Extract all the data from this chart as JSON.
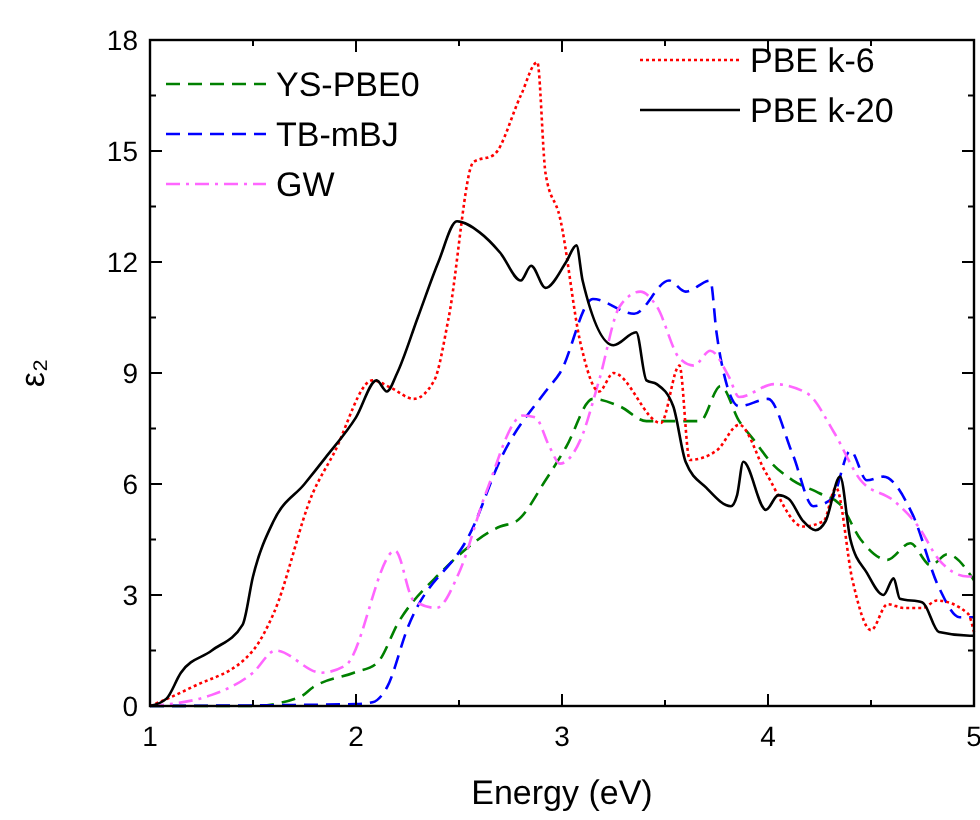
{
  "chart_data": {
    "type": "line",
    "xlabel": "Energy (eV)",
    "ylabel": "ε₂",
    "xlim": [
      1,
      5
    ],
    "ylim": [
      0,
      18
    ],
    "xticks": [
      1,
      {
        "value": 1.5,
        "label": null
      },
      2,
      {
        "value": 2.5,
        "label": null
      },
      3,
      {
        "value": 3.5,
        "label": null
      },
      4,
      {
        "value": 4.5,
        "label": null
      },
      5
    ],
    "yticks": [
      0,
      {
        "value": 1.5,
        "label": null
      },
      3,
      {
        "value": 4.5,
        "label": null
      },
      6,
      {
        "value": 7.5,
        "label": null
      },
      9,
      {
        "value": 10.5,
        "label": null
      },
      12,
      {
        "value": 13.5,
        "label": null
      },
      15,
      {
        "value": 16.5,
        "label": null
      },
      18
    ],
    "grid": false,
    "legend": "top",
    "marker": "none",
    "series": [
      {
        "name": "YS-PBE0",
        "color": "#008000",
        "line_style": "dashed",
        "x": [
          1,
          1.5,
          1.73,
          1.79,
          1.99,
          2.1,
          2.21,
          2.41,
          2.7,
          2.78,
          2.92,
          3.02,
          3.15,
          3.28,
          3.41,
          3.54,
          3.67,
          3.77,
          3.86,
          3.93,
          4.02,
          4.12,
          4.25,
          4.35,
          4.45,
          4.58,
          4.69,
          4.79,
          4.87,
          5
        ],
        "values": [
          0,
          0,
          0.25,
          0.5,
          0.9,
          1.15,
          2.3,
          3.6,
          4.85,
          5.0,
          6.1,
          7.0,
          8.3,
          8.1,
          7.7,
          7.7,
          7.7,
          8.65,
          7.7,
          7.2,
          6.55,
          6.1,
          5.75,
          5.45,
          4.5,
          3.95,
          4.4,
          3.8,
          4.1,
          3.4
        ]
      },
      {
        "name": "TB-mBJ",
        "color": "#0000ff",
        "line_style": "dashed",
        "x": [
          1,
          2.0,
          2.08,
          2.15,
          2.25,
          2.57,
          2.7,
          2.92,
          2.99,
          3.15,
          3.35,
          3.52,
          3.6,
          3.72,
          3.75,
          3.77,
          3.86,
          4.0,
          4.12,
          4.22,
          4.31,
          4.4,
          4.48,
          4.56,
          4.7,
          4.83,
          4.93,
          5
        ],
        "values": [
          0,
          0.05,
          0.1,
          0.5,
          2.1,
          4.85,
          6.65,
          8.5,
          9.0,
          11.0,
          10.6,
          11.5,
          11.2,
          11.5,
          10.1,
          9.4,
          8.1,
          8.3,
          6.8,
          5.4,
          5.6,
          6.9,
          6.1,
          6.2,
          5.2,
          3.2,
          2.4,
          2.4
        ]
      },
      {
        "name": "GW",
        "color": "#ff66ff",
        "line_style": "dashdot",
        "x": [
          1,
          1.3,
          1.5,
          1.61,
          1.83,
          1.95,
          2.19,
          2.28,
          2.39,
          2.5,
          2.63,
          2.81,
          2.87,
          2.94,
          2.99,
          3.09,
          3.18,
          3.28,
          3.38,
          3.46,
          3.57,
          3.64,
          3.72,
          3.81,
          3.86,
          4.03,
          4.19,
          4.32,
          4.45,
          4.61,
          4.73,
          4.83,
          4.97,
          5
        ],
        "values": [
          0,
          0.3,
          0.9,
          1.5,
          0.9,
          1.1,
          4.2,
          2.85,
          2.65,
          3.6,
          5.75,
          7.85,
          7.8,
          7.0,
          6.55,
          7.2,
          8.8,
          10.8,
          11.2,
          10.8,
          9.4,
          9.2,
          9.6,
          8.9,
          8.35,
          8.7,
          8.45,
          7.4,
          6.1,
          5.55,
          4.85,
          3.95,
          3.5,
          3.5
        ]
      },
      {
        "name": "PBE k-6",
        "color": "#ff0000",
        "line_style": "dotted",
        "x": [
          1,
          1.2,
          1.5,
          1.6,
          1.79,
          1.89,
          2.08,
          2.17,
          2.28,
          2.38,
          2.45,
          2.57,
          2.67,
          2.8,
          2.88,
          2.92,
          2.99,
          3.09,
          3.18,
          3.25,
          3.48,
          3.57,
          3.62,
          3.75,
          3.86,
          3.99,
          4.17,
          4.27,
          4.33,
          4.41,
          4.5,
          4.58,
          4.66,
          4.75,
          4.82,
          4.97,
          5
        ],
        "values": [
          0,
          0.5,
          1.5,
          2.5,
          5.75,
          6.8,
          8.8,
          8.6,
          8.3,
          8.8,
          10.5,
          14.7,
          14.9,
          16.5,
          17.4,
          14.4,
          13.2,
          9.8,
          8.5,
          9.0,
          7.65,
          9.2,
          6.65,
          6.9,
          7.6,
          6.3,
          4.85,
          5.0,
          5.9,
          3.4,
          2.05,
          2.75,
          2.65,
          2.65,
          2.85,
          2.5,
          2.0
        ]
      },
      {
        "name": "PBE k-20",
        "color": "#000000",
        "line_style": "solid",
        "x": [
          1,
          1.08,
          1.15,
          1.3,
          1.45,
          1.5,
          1.6,
          1.75,
          1.85,
          2.0,
          2.1,
          2.15,
          2.2,
          2.3,
          2.4,
          2.49,
          2.6,
          2.7,
          2.8,
          2.85,
          2.92,
          3.02,
          3.07,
          3.1,
          3.25,
          3.36,
          3.41,
          3.46,
          3.54,
          3.6,
          3.7,
          3.82,
          3.85,
          3.88,
          3.99,
          4.05,
          4.1,
          4.17,
          4.23,
          4.28,
          4.35,
          4.4,
          4.48,
          4.56,
          4.61,
          4.64,
          4.75,
          4.83,
          4.98,
          5
        ],
        "values": [
          0,
          0.2,
          0.9,
          1.5,
          2.2,
          3.5,
          5.0,
          6.0,
          6.7,
          7.8,
          8.8,
          8.5,
          9.0,
          10.5,
          12.0,
          13.1,
          12.8,
          12.25,
          11.5,
          11.9,
          11.3,
          12.0,
          12.45,
          11.5,
          9.75,
          10.1,
          8.8,
          8.7,
          8.1,
          6.6,
          5.9,
          5.4,
          5.7,
          6.6,
          5.3,
          5.7,
          5.6,
          5.0,
          4.75,
          5.0,
          6.2,
          4.5,
          3.6,
          3.0,
          3.45,
          2.9,
          2.8,
          2.0,
          1.9,
          1.9
        ]
      }
    ]
  }
}
